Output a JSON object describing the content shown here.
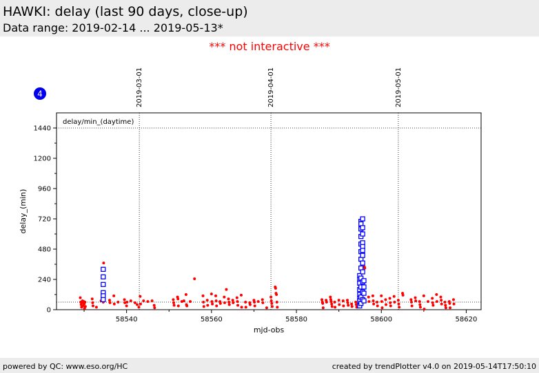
{
  "header": {
    "title": "HAWKI: delay (last 90 days, close-up)",
    "subtitle": "Data range: 2019-02-14 ... 2019-05-13*"
  },
  "notice": "*** not interactive ***",
  "badge": {
    "label": "4",
    "color": "#0000ee"
  },
  "footer": {
    "left": "powered by QC: www.eso.org/HC",
    "right": "created by trendPlotter v4.0 on 2019-05-14T17:50:10"
  },
  "colors": {
    "points": "#ff0000",
    "outliers": "#0000ff"
  },
  "chart_data": {
    "type": "scatter",
    "title": "",
    "xlabel": "mjd-obs",
    "ylabel": "delay_(min)",
    "xlim": [
      58523.5,
      58623.5
    ],
    "ylim": [
      0,
      1560
    ],
    "xticks": [
      58540,
      58560,
      58580,
      58600,
      58620
    ],
    "yticks": [
      0,
      240,
      480,
      720,
      960,
      1200,
      1440
    ],
    "grid": false,
    "legend": "none",
    "plot_label": "delay/min_(daytime)",
    "reference_lines": [
      {
        "axis": "y",
        "value": 1440,
        "style": "dotted"
      },
      {
        "axis": "y",
        "value": 60,
        "style": "dotted"
      }
    ],
    "date_markers": [
      {
        "x": 58543,
        "label": "2019-03-01"
      },
      {
        "x": 58574,
        "label": "2019-04-01"
      },
      {
        "x": 58604,
        "label": "2019-05-01"
      }
    ],
    "series": [
      {
        "marker": "dot",
        "points": [
          [
            58529.1,
            95
          ],
          [
            58529.2,
            60
          ],
          [
            58529.3,
            40
          ],
          [
            58529.4,
            20
          ],
          [
            58529.5,
            55
          ],
          [
            58529.6,
            70
          ],
          [
            58529.7,
            30
          ],
          [
            58529.9,
            65
          ],
          [
            58530.0,
            45
          ],
          [
            58530.1,
            10
          ],
          [
            58530.2,
            60
          ],
          [
            58530.3,
            25
          ],
          [
            58531.9,
            85
          ],
          [
            58532.0,
            55
          ],
          [
            58532.1,
            30
          ],
          [
            58532.9,
            20
          ],
          [
            58534.0,
            70
          ],
          [
            58534.5,
            60
          ],
          [
            58534.6,
            370
          ],
          [
            58536.0,
            75
          ],
          [
            58536.1,
            55
          ],
          [
            58537.0,
            110
          ],
          [
            58537.1,
            45
          ],
          [
            58538.0,
            60
          ],
          [
            58539.5,
            80
          ],
          [
            58539.6,
            55
          ],
          [
            58540.0,
            30
          ],
          [
            58540.1,
            60
          ],
          [
            58541.0,
            70
          ],
          [
            58542.0,
            55
          ],
          [
            58542.5,
            40
          ],
          [
            58542.9,
            20
          ],
          [
            58543.2,
            105
          ],
          [
            58543.3,
            45
          ],
          [
            58544.0,
            70
          ],
          [
            58545.0,
            65
          ],
          [
            58546.0,
            70
          ],
          [
            58546.5,
            35
          ],
          [
            58546.6,
            15
          ],
          [
            58551.0,
            80
          ],
          [
            58551.1,
            55
          ],
          [
            58551.2,
            35
          ],
          [
            58552.0,
            100
          ],
          [
            58552.1,
            85
          ],
          [
            58552.2,
            30
          ],
          [
            58553.0,
            65
          ],
          [
            58553.5,
            70
          ],
          [
            58554.0,
            120
          ],
          [
            58554.1,
            40
          ],
          [
            58554.2,
            30
          ],
          [
            58555.0,
            65
          ],
          [
            58556.0,
            245
          ],
          [
            58558.0,
            110
          ],
          [
            58558.1,
            60
          ],
          [
            58558.2,
            25
          ],
          [
            58559.0,
            75
          ],
          [
            58559.1,
            35
          ],
          [
            58560.0,
            125
          ],
          [
            58560.1,
            65
          ],
          [
            58560.2,
            45
          ],
          [
            58561.0,
            110
          ],
          [
            58561.1,
            70
          ],
          [
            58561.2,
            30
          ],
          [
            58562.0,
            65
          ],
          [
            58562.1,
            50
          ],
          [
            58563.0,
            100
          ],
          [
            58563.1,
            55
          ],
          [
            58563.5,
            160
          ],
          [
            58564.0,
            85
          ],
          [
            58564.1,
            60
          ],
          [
            58564.2,
            40
          ],
          [
            58565.0,
            75
          ],
          [
            58565.1,
            55
          ],
          [
            58566.0,
            95
          ],
          [
            58566.1,
            65
          ],
          [
            58566.2,
            35
          ],
          [
            58567.0,
            115
          ],
          [
            58567.1,
            20
          ],
          [
            58568.0,
            60
          ],
          [
            58568.1,
            20
          ],
          [
            58569.0,
            55
          ],
          [
            58569.1,
            40
          ],
          [
            58570.0,
            75
          ],
          [
            58570.1,
            60
          ],
          [
            58570.2,
            30
          ],
          [
            58571.0,
            65
          ],
          [
            58572.0,
            80
          ],
          [
            58572.1,
            55
          ],
          [
            58573.0,
            15
          ],
          [
            58574.0,
            100
          ],
          [
            58574.1,
            70
          ],
          [
            58574.2,
            50
          ],
          [
            58574.3,
            25
          ],
          [
            58575.0,
            180
          ],
          [
            58575.1,
            170
          ],
          [
            58575.2,
            130
          ],
          [
            58575.3,
            120
          ],
          [
            58575.4,
            60
          ],
          [
            58575.5,
            20
          ],
          [
            58586.0,
            80
          ],
          [
            58586.1,
            60
          ],
          [
            58586.2,
            50
          ],
          [
            58586.3,
            15
          ],
          [
            58587.0,
            75
          ],
          [
            58587.1,
            60
          ],
          [
            58588.0,
            100
          ],
          [
            58588.1,
            80
          ],
          [
            58588.2,
            65
          ],
          [
            58588.3,
            45
          ],
          [
            58588.4,
            25
          ],
          [
            58589.0,
            60
          ],
          [
            58589.1,
            20
          ],
          [
            58590.0,
            75
          ],
          [
            58590.1,
            40
          ],
          [
            58591.0,
            70
          ],
          [
            58591.1,
            30
          ],
          [
            58592.0,
            75
          ],
          [
            58592.1,
            55
          ],
          [
            58592.2,
            35
          ],
          [
            58593.0,
            45
          ],
          [
            58593.1,
            25
          ],
          [
            58594.0,
            60
          ],
          [
            58594.1,
            40
          ],
          [
            58594.2,
            20
          ],
          [
            58596.0,
            340
          ],
          [
            58596.1,
            330
          ],
          [
            58596.2,
            70
          ],
          [
            58597.0,
            100
          ],
          [
            58597.1,
            65
          ],
          [
            58598.0,
            110
          ],
          [
            58598.1,
            70
          ],
          [
            58598.2,
            45
          ],
          [
            58599.0,
            60
          ],
          [
            58599.1,
            30
          ],
          [
            58600.0,
            110
          ],
          [
            58600.1,
            65
          ],
          [
            58600.2,
            15
          ],
          [
            58601.0,
            80
          ],
          [
            58601.1,
            40
          ],
          [
            58602.0,
            90
          ],
          [
            58602.1,
            55
          ],
          [
            58602.2,
            30
          ],
          [
            58603.0,
            105
          ],
          [
            58603.1,
            60
          ],
          [
            58604.0,
            75
          ],
          [
            58604.1,
            45
          ],
          [
            58604.2,
            20
          ],
          [
            58605.0,
            130
          ],
          [
            58605.1,
            115
          ],
          [
            58607.0,
            80
          ],
          [
            58607.1,
            60
          ],
          [
            58607.2,
            30
          ],
          [
            58608.0,
            95
          ],
          [
            58608.1,
            70
          ],
          [
            58609.0,
            65
          ],
          [
            58609.1,
            40
          ],
          [
            58609.2,
            20
          ],
          [
            58610.0,
            110
          ],
          [
            58610.1,
            5
          ],
          [
            58611.0,
            65
          ],
          [
            58612.0,
            90
          ],
          [
            58612.1,
            55
          ],
          [
            58612.2,
            35
          ],
          [
            58613.0,
            120
          ],
          [
            58613.1,
            65
          ],
          [
            58614.0,
            100
          ],
          [
            58614.1,
            75
          ],
          [
            58614.2,
            45
          ],
          [
            58615.0,
            60
          ],
          [
            58615.1,
            35
          ],
          [
            58615.2,
            15
          ],
          [
            58616.0,
            65
          ],
          [
            58616.1,
            50
          ],
          [
            58616.2,
            15
          ],
          [
            58617.0,
            80
          ],
          [
            58617.1,
            45
          ]
        ]
      },
      {
        "marker": "open-square",
        "points": [
          [
            58534.5,
            320
          ],
          [
            58534.5,
            260
          ],
          [
            58534.5,
            200
          ],
          [
            58534.5,
            135
          ],
          [
            58534.5,
            110
          ],
          [
            58534.5,
            80
          ],
          [
            58594.9,
            270
          ],
          [
            58594.9,
            240
          ],
          [
            58594.9,
            210
          ],
          [
            58594.9,
            160
          ],
          [
            58594.9,
            120
          ],
          [
            58594.9,
            90
          ],
          [
            58594.9,
            70
          ],
          [
            58594.9,
            30
          ],
          [
            58595.2,
            700
          ],
          [
            58595.2,
            680
          ],
          [
            58595.2,
            640
          ],
          [
            58595.2,
            580
          ],
          [
            58595.2,
            520
          ],
          [
            58595.2,
            460
          ],
          [
            58595.2,
            400
          ],
          [
            58595.2,
            330
          ],
          [
            58595.2,
            250
          ],
          [
            58595.2,
            180
          ],
          [
            58595.2,
            100
          ],
          [
            58595.2,
            50
          ],
          [
            58595.6,
            720
          ],
          [
            58595.6,
            650
          ],
          [
            58595.6,
            600
          ],
          [
            58595.6,
            530
          ],
          [
            58595.6,
            500
          ],
          [
            58595.6,
            470
          ],
          [
            58595.6,
            430
          ],
          [
            58595.6,
            370
          ],
          [
            58595.6,
            300
          ],
          [
            58595.6,
            220
          ],
          [
            58595.6,
            140
          ],
          [
            58595.6,
            80
          ],
          [
            58595.9,
            230
          ],
          [
            58595.9,
            180
          ],
          [
            58595.9,
            130
          ],
          [
            58595.9,
            70
          ]
        ]
      }
    ]
  }
}
